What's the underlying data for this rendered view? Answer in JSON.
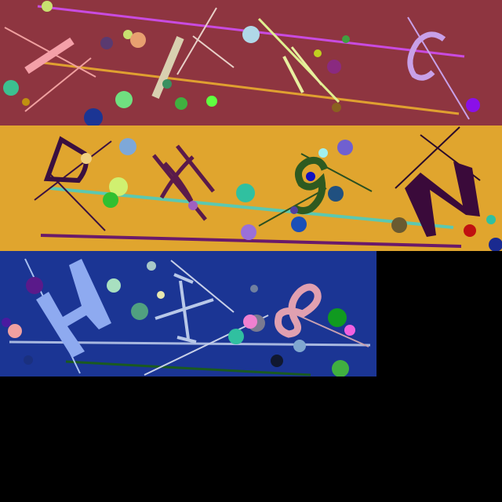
{
  "colors": {
    "background": "#000000",
    "band1_bg": "#8e3540",
    "band2_bg": "#e0a52e",
    "band3_bg": "#1b3594"
  },
  "bands": [
    {
      "name": "top-band",
      "glyphs": [
        "Z",
        "I",
        "A",
        "C"
      ]
    },
    {
      "name": "middle-band",
      "glyphs": [
        "D",
        "X",
        "9",
        "N"
      ]
    },
    {
      "name": "bottom-band",
      "glyphs": [
        "H",
        "X",
        "8"
      ]
    }
  ]
}
